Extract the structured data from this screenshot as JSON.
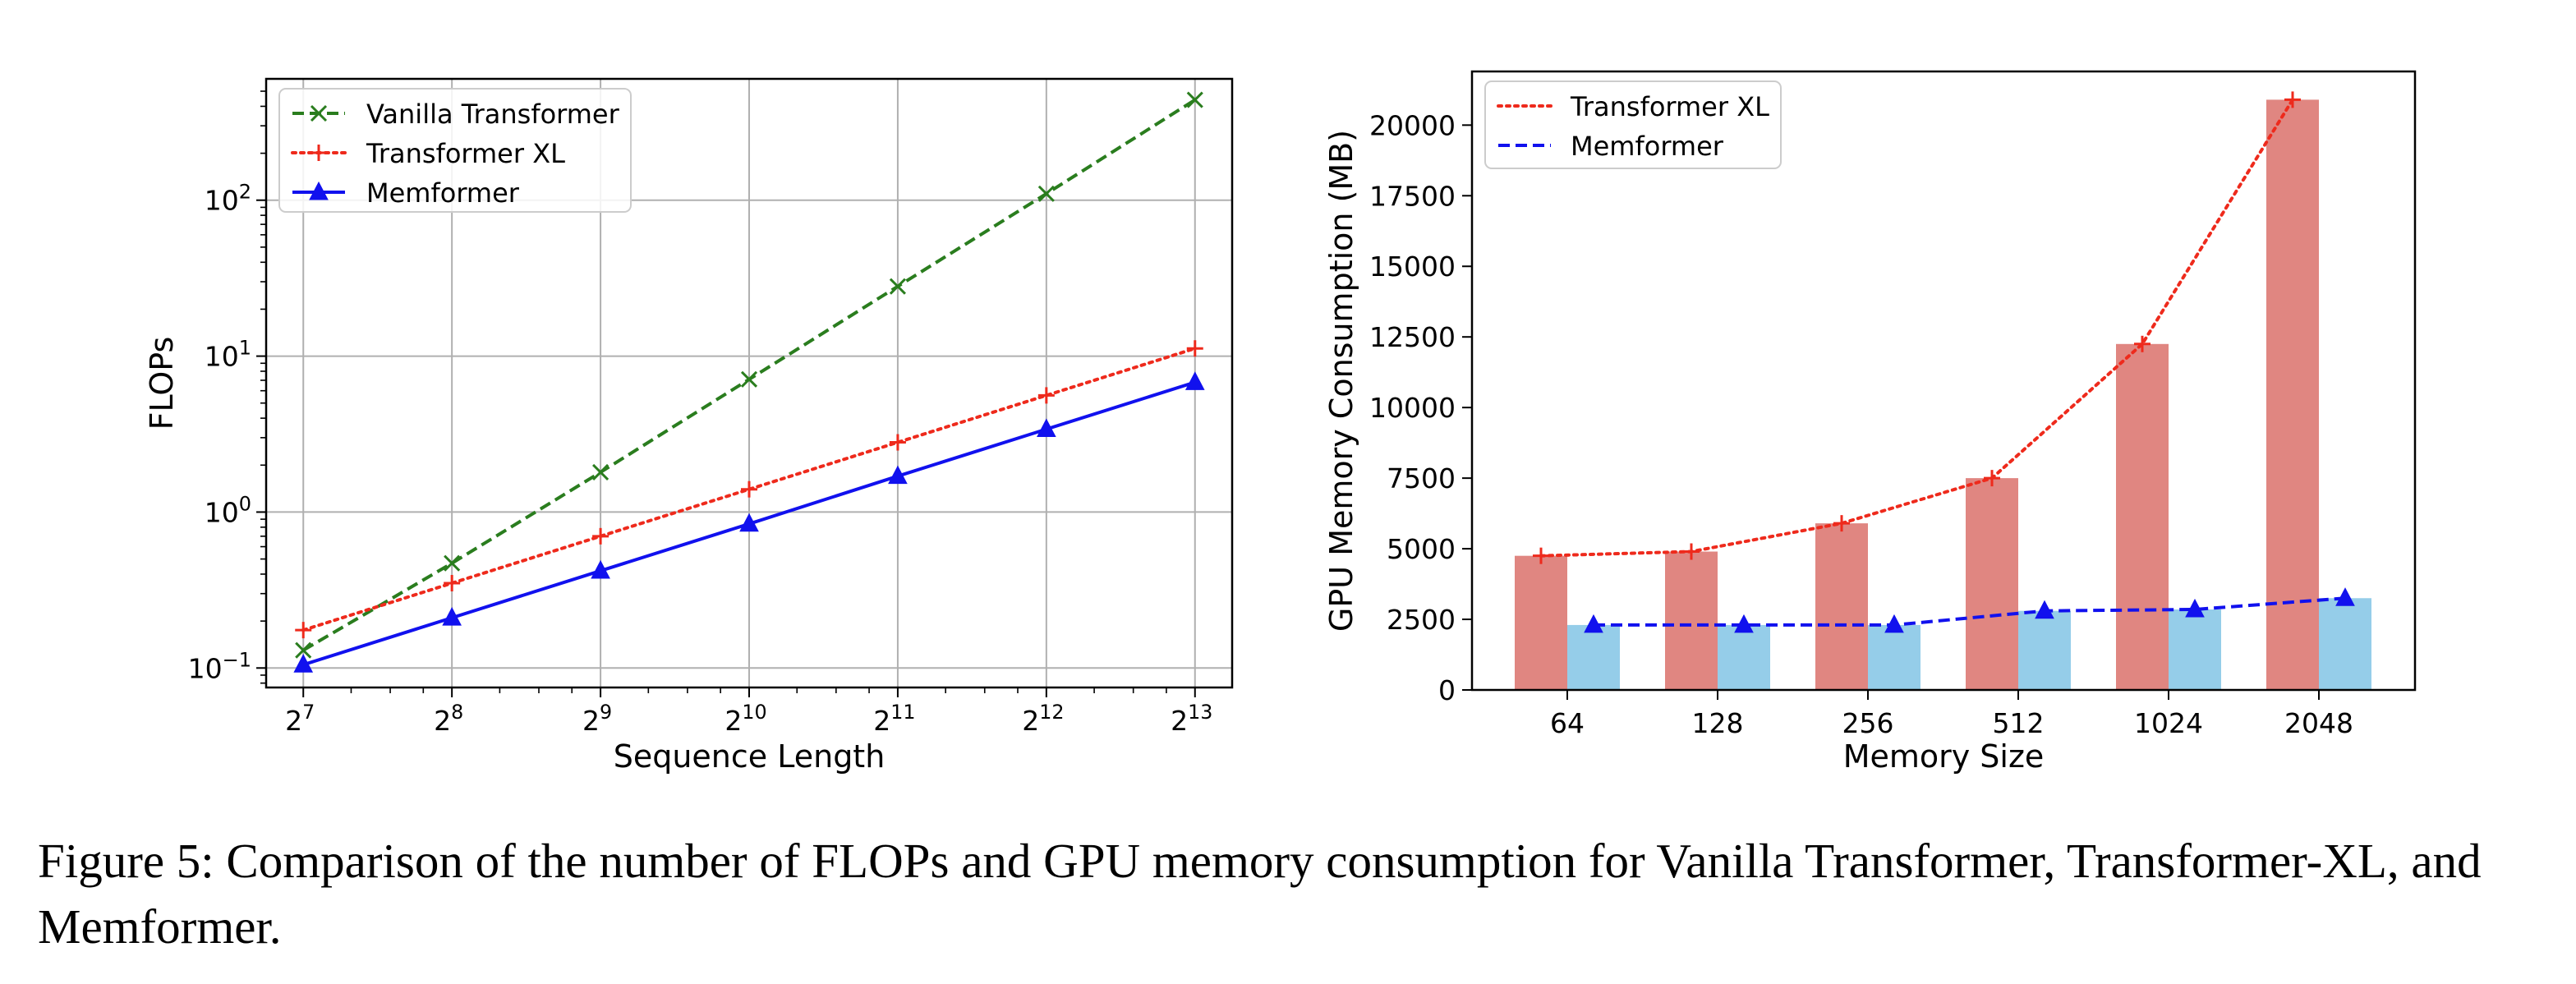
{
  "caption": "Figure 5: Comparison of the number of FLOPs and GPU memory consumption for Vanilla Transformer, Transformer-XL, and Memformer.",
  "chart_data": [
    {
      "type": "line",
      "xlabel": "Sequence Length",
      "ylabel": "FLOPs",
      "x_scale": "log2",
      "y_scale": "log10",
      "x": [
        128,
        256,
        512,
        1024,
        2048,
        4096,
        8192
      ],
      "x_tick_labels": [
        {
          "base": "2",
          "exp": "7"
        },
        {
          "base": "2",
          "exp": "8"
        },
        {
          "base": "2",
          "exp": "9"
        },
        {
          "base": "2",
          "exp": "10"
        },
        {
          "base": "2",
          "exp": "11"
        },
        {
          "base": "2",
          "exp": "12"
        },
        {
          "base": "2",
          "exp": "13"
        }
      ],
      "y_tick_labels": [
        {
          "base": "10",
          "exp": "−1"
        },
        {
          "base": "10",
          "exp": "0"
        },
        {
          "base": "10",
          "exp": "1"
        },
        {
          "base": "10",
          "exp": "2"
        }
      ],
      "y_tick_values": [
        0.1,
        1,
        10,
        100
      ],
      "ylim": [
        0.075,
        600
      ],
      "grid": true,
      "legend_position": "top-left",
      "series": [
        {
          "name": "Vanilla Transformer",
          "color": "#2a7d1e",
          "line": "dashed",
          "marker": "x",
          "values": [
            0.13,
            0.47,
            1.8,
            7.1,
            28,
            110,
            440
          ]
        },
        {
          "name": "Transformer XL",
          "color": "#ee2a1c",
          "line": "dotted",
          "marker": "plus",
          "values": [
            0.175,
            0.35,
            0.7,
            1.4,
            2.8,
            5.6,
            11.2
          ]
        },
        {
          "name": "Memformer",
          "color": "#1111ee",
          "line": "solid",
          "marker": "triangle",
          "values": [
            0.105,
            0.21,
            0.42,
            0.84,
            1.7,
            3.4,
            6.8
          ]
        }
      ]
    },
    {
      "type": "bar",
      "xlabel": "Memory Size",
      "ylabel": "GPU Memory Consumption (MB)",
      "categories": [
        "64",
        "128",
        "256",
        "512",
        "1024",
        "2048"
      ],
      "y_ticks": [
        0,
        2500,
        5000,
        7500,
        10000,
        12500,
        15000,
        17500,
        20000
      ],
      "ylim": [
        0,
        21900
      ],
      "grid": false,
      "legend_position": "top-left",
      "series": [
        {
          "name": "Transformer XL",
          "bar_color": "#e08681",
          "line_color": "#ee2a1c",
          "line": "dotted",
          "marker": "plus",
          "values": [
            4750,
            4900,
            5900,
            7500,
            12250,
            20900
          ]
        },
        {
          "name": "Memformer",
          "bar_color": "#95cde9",
          "line_color": "#1111ee",
          "line": "dashed",
          "marker": "triangle",
          "values": [
            2300,
            2300,
            2300,
            2800,
            2850,
            3250
          ]
        }
      ]
    }
  ]
}
